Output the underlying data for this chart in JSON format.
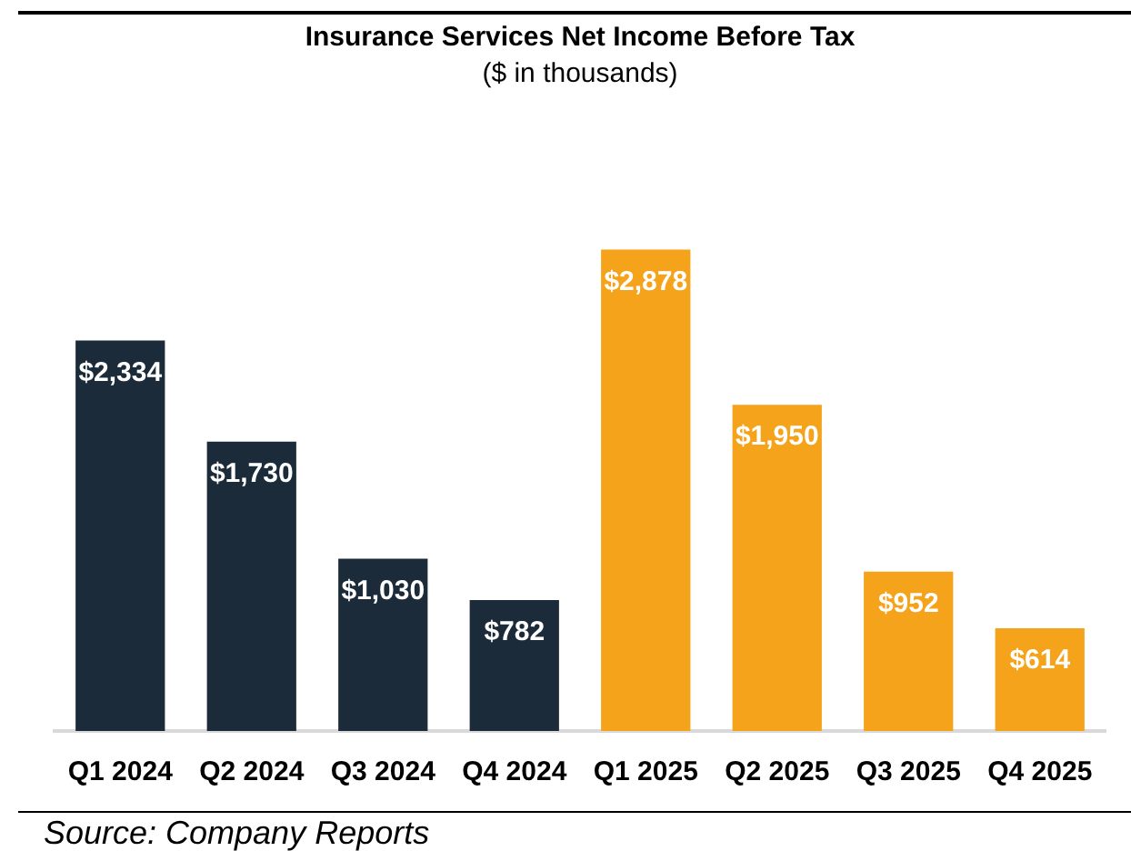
{
  "chart_data": {
    "type": "bar",
    "title": "Insurance Services Net Income Before Tax",
    "subtitle": "($ in thousands)",
    "categories": [
      "Q1 2024",
      "Q2 2024",
      "Q3 2024",
      "Q4 2024",
      "Q1 2025",
      "Q2 2025",
      "Q3 2025",
      "Q4 2025"
    ],
    "values": [
      2334,
      1730,
      1030,
      782,
      2878,
      1950,
      952,
      614
    ],
    "colors": [
      "#1c2b3a",
      "#1c2b3a",
      "#1c2b3a",
      "#1c2b3a",
      "#f5a31a",
      "#f5a31a",
      "#f5a31a",
      "#f5a31a"
    ],
    "value_labels": [
      "$2,334",
      "$1,730",
      "$1,030",
      "$782",
      "$2,878",
      "$1,950",
      "$952",
      "$614"
    ],
    "grid": false,
    "legend": false,
    "annotations": [
      "Source: Company Reports"
    ]
  }
}
